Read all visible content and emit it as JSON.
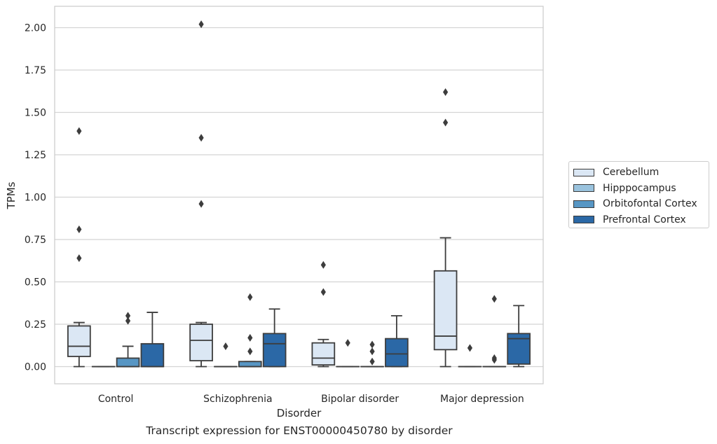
{
  "chart_data": {
    "type": "box",
    "title": "",
    "caption": "Transcript expression for ENST00000450780 by disorder",
    "xlabel": "Disorder",
    "ylabel": "TPMs",
    "ylim": [
      -0.1,
      2.12
    ],
    "yticks": [
      "0.00",
      "0.25",
      "0.50",
      "0.75",
      "1.00",
      "1.25",
      "1.50",
      "1.75",
      "2.00"
    ],
    "grid": true,
    "legend_position": "right",
    "categories": [
      "Control",
      "Schizophrenia",
      "Bipolar disorder",
      "Major depression"
    ],
    "series": [
      {
        "name": "Cerebellum",
        "color": "#dbe7f4",
        "boxes": [
          {
            "whisker_low": 0.0,
            "q1": 0.06,
            "median": 0.12,
            "q3": 0.24,
            "whisker_high": 0.26,
            "outliers": [
              0.64,
              0.81,
              1.39
            ]
          },
          {
            "whisker_low": 0.0,
            "q1": 0.035,
            "median": 0.155,
            "q3": 0.25,
            "whisker_high": 0.26,
            "outliers": [
              0.96,
              1.35,
              2.02
            ]
          },
          {
            "whisker_low": 0.0,
            "q1": 0.01,
            "median": 0.05,
            "q3": 0.14,
            "whisker_high": 0.16,
            "outliers": [
              0.44,
              0.6
            ]
          },
          {
            "whisker_low": 0.0,
            "q1": 0.1,
            "median": 0.18,
            "q3": 0.565,
            "whisker_high": 0.76,
            "outliers": [
              1.44,
              1.62
            ]
          }
        ]
      },
      {
        "name": "Hipppocampus",
        "color": "#9ac3de",
        "boxes": [
          {
            "whisker_low": 0.0,
            "q1": 0.0,
            "median": 0.0,
            "q3": 0.0,
            "whisker_high": 0.0,
            "outliers": []
          },
          {
            "whisker_low": 0.0,
            "q1": 0.0,
            "median": 0.0,
            "q3": 0.0,
            "whisker_high": 0.0,
            "outliers": [
              0.12
            ]
          },
          {
            "whisker_low": 0.0,
            "q1": 0.0,
            "median": 0.0,
            "q3": 0.0,
            "whisker_high": 0.0,
            "outliers": [
              0.14
            ]
          },
          {
            "whisker_low": 0.0,
            "q1": 0.0,
            "median": 0.0,
            "q3": 0.0,
            "whisker_high": 0.0,
            "outliers": [
              0.11
            ]
          }
        ]
      },
      {
        "name": "Orbitofontal Cortex",
        "color": "#5796c4",
        "boxes": [
          {
            "whisker_low": 0.0,
            "q1": 0.0,
            "median": 0.0,
            "q3": 0.05,
            "whisker_high": 0.12,
            "outliers": [
              0.27,
              0.3
            ]
          },
          {
            "whisker_low": 0.0,
            "q1": 0.0,
            "median": 0.0,
            "q3": 0.03,
            "whisker_high": 0.03,
            "outliers": [
              0.09,
              0.17,
              0.41
            ]
          },
          {
            "whisker_low": 0.0,
            "q1": 0.0,
            "median": 0.0,
            "q3": 0.0,
            "whisker_high": 0.0,
            "outliers": [
              0.03,
              0.09,
              0.13
            ]
          },
          {
            "whisker_low": 0.0,
            "q1": 0.0,
            "median": 0.0,
            "q3": 0.0,
            "whisker_high": 0.0,
            "outliers": [
              0.04,
              0.05,
              0.4
            ]
          }
        ]
      },
      {
        "name": "Prefrontal Cortex",
        "color": "#2b68a6",
        "boxes": [
          {
            "whisker_low": 0.0,
            "q1": 0.0,
            "median": 0.0,
            "q3": 0.135,
            "whisker_high": 0.32,
            "outliers": []
          },
          {
            "whisker_low": 0.0,
            "q1": 0.0,
            "median": 0.135,
            "q3": 0.195,
            "whisker_high": 0.34,
            "outliers": []
          },
          {
            "whisker_low": 0.0,
            "q1": 0.0,
            "median": 0.075,
            "q3": 0.165,
            "whisker_high": 0.3,
            "outliers": []
          },
          {
            "whisker_low": 0.0,
            "q1": 0.015,
            "median": 0.165,
            "q3": 0.195,
            "whisker_high": 0.36,
            "outliers": []
          }
        ]
      }
    ]
  }
}
